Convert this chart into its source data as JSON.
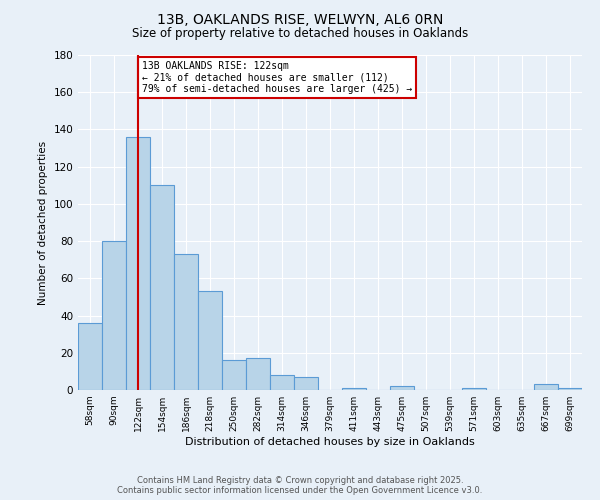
{
  "title": "13B, OAKLANDS RISE, WELWYN, AL6 0RN",
  "subtitle": "Size of property relative to detached houses in Oaklands",
  "xlabel": "Distribution of detached houses by size in Oaklands",
  "ylabel": "Number of detached properties",
  "bar_labels": [
    "58sqm",
    "90sqm",
    "122sqm",
    "154sqm",
    "186sqm",
    "218sqm",
    "250sqm",
    "282sqm",
    "314sqm",
    "346sqm",
    "379sqm",
    "411sqm",
    "443sqm",
    "475sqm",
    "507sqm",
    "539sqm",
    "571sqm",
    "603sqm",
    "635sqm",
    "667sqm",
    "699sqm"
  ],
  "bar_values": [
    36,
    80,
    136,
    110,
    73,
    53,
    16,
    17,
    8,
    7,
    0,
    1,
    0,
    2,
    0,
    0,
    1,
    0,
    0,
    3,
    1
  ],
  "bar_color": "#b8d4e8",
  "bar_edge_color": "#5b9bd5",
  "ylim": [
    0,
    180
  ],
  "yticks": [
    0,
    20,
    40,
    60,
    80,
    100,
    120,
    140,
    160,
    180
  ],
  "vline_x": 2,
  "vline_color": "#cc0000",
  "annotation_text": "13B OAKLANDS RISE: 122sqm\n← 21% of detached houses are smaller (112)\n79% of semi-detached houses are larger (425) →",
  "annotation_box_color": "#ffffff",
  "annotation_box_edge": "#cc0000",
  "footer_line1": "Contains HM Land Registry data © Crown copyright and database right 2025.",
  "footer_line2": "Contains public sector information licensed under the Open Government Licence v3.0.",
  "bg_color": "#e8f0f8",
  "plot_bg_color": "#e8f0f8",
  "grid_color": "#ffffff"
}
